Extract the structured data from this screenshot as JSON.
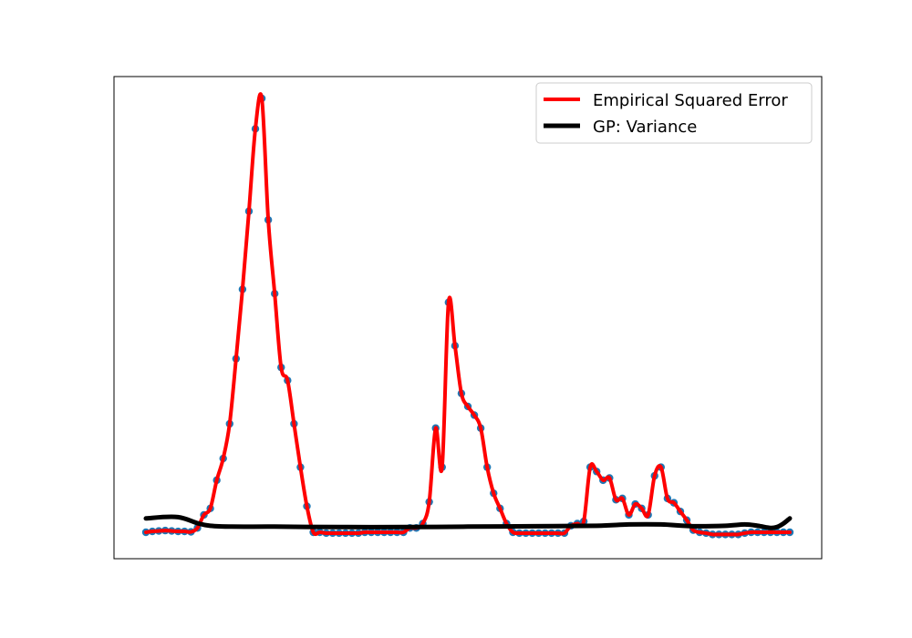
{
  "chart_data": {
    "type": "line",
    "title": "",
    "xlabel": "",
    "ylabel": "",
    "axes_ticks": "none",
    "grid": false,
    "legend_position": "top-right",
    "xlim": [
      0,
      100
    ],
    "ylim": [
      -0.05,
      1.0
    ],
    "series": [
      {
        "name": "Empirical Squared Error",
        "kind": "line+points",
        "color": "#ff0000",
        "marker_color": "#1f77b4",
        "x": [
          0,
          1,
          2,
          3,
          4,
          5,
          6,
          7,
          8,
          9,
          10,
          11,
          12,
          13,
          14,
          15,
          16,
          17,
          18,
          19,
          20,
          21,
          22,
          23,
          24,
          25,
          26,
          27,
          28,
          29,
          30,
          31,
          32,
          33,
          34,
          35,
          36,
          37,
          38,
          39,
          40,
          41,
          42,
          43,
          44,
          45,
          46,
          47,
          48,
          49,
          50,
          51,
          52,
          53,
          54,
          55,
          56,
          57,
          58,
          59,
          60,
          61,
          62,
          63,
          64,
          65,
          66,
          67,
          68,
          69,
          70,
          71,
          72,
          73,
          74,
          75,
          76,
          77,
          78,
          79,
          80,
          81,
          82,
          83,
          84,
          85,
          86,
          87,
          88,
          89,
          90,
          91,
          92,
          93,
          94,
          95,
          96,
          97,
          98,
          99,
          100
        ],
        "y": [
          0.0,
          0.002,
          0.003,
          0.004,
          0.003,
          0.002,
          0.002,
          0.001,
          0.01,
          0.04,
          0.055,
          0.12,
          0.17,
          0.25,
          0.4,
          0.56,
          0.74,
          0.93,
          1.0,
          0.72,
          0.55,
          0.38,
          0.35,
          0.25,
          0.15,
          0.06,
          0.0,
          0.0,
          -0.002,
          -0.002,
          -0.002,
          -0.002,
          -0.002,
          -0.002,
          0.0,
          0.0,
          0.0,
          0.0,
          0.0,
          0.0,
          0.0,
          0.01,
          0.01,
          0.02,
          0.07,
          0.24,
          0.15,
          0.53,
          0.43,
          0.32,
          0.29,
          0.27,
          0.24,
          0.15,
          0.09,
          0.055,
          0.02,
          0.0,
          -0.002,
          -0.002,
          -0.002,
          -0.002,
          -0.002,
          -0.002,
          -0.002,
          -0.002,
          0.015,
          0.02,
          0.025,
          0.15,
          0.14,
          0.12,
          0.125,
          0.075,
          0.078,
          0.04,
          0.065,
          0.055,
          0.04,
          0.13,
          0.15,
          0.078,
          0.068,
          0.048,
          0.028,
          0.005,
          0.0,
          -0.002,
          -0.005,
          -0.005,
          -0.005,
          -0.005,
          -0.005,
          -0.002,
          0.0,
          0.0,
          0.0,
          0.0,
          0.0,
          0.0,
          0.0
        ]
      },
      {
        "name": "GP: Variance",
        "kind": "line",
        "color": "#000000",
        "x": [
          0,
          5,
          10,
          20,
          30,
          40,
          50,
          60,
          70,
          75,
          80,
          85,
          90,
          93,
          95,
          97,
          98,
          99,
          100
        ],
        "y": [
          0.032,
          0.035,
          0.015,
          0.013,
          0.012,
          0.012,
          0.013,
          0.014,
          0.015,
          0.018,
          0.018,
          0.014,
          0.015,
          0.018,
          0.015,
          0.01,
          0.012,
          0.02,
          0.032
        ]
      }
    ]
  }
}
